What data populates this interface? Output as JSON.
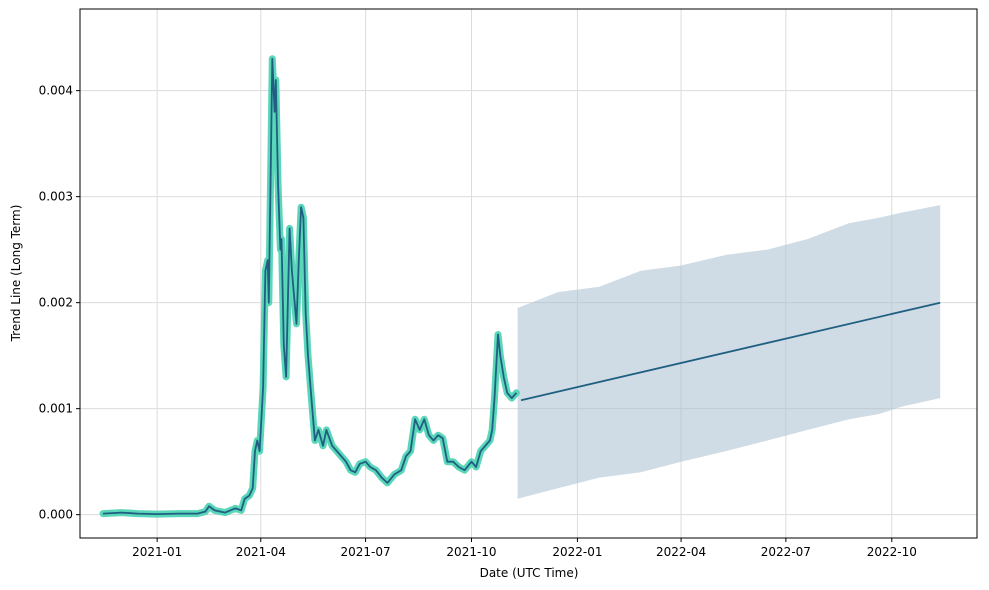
{
  "chart_data": {
    "type": "line",
    "title": "",
    "xlabel": "Date (UTC Time)",
    "ylabel": "Trend Line (Long Term)",
    "x_type": "date",
    "xlim": [
      "2020-10-26",
      "2022-12-14"
    ],
    "ylim": [
      -0.00022,
      0.00477
    ],
    "grid": true,
    "legend": "none",
    "x_ticks": [
      {
        "date": "2021-01-01",
        "label": "2021-01"
      },
      {
        "date": "2021-04-01",
        "label": "2021-04"
      },
      {
        "date": "2021-07-01",
        "label": "2021-07"
      },
      {
        "date": "2021-10-01",
        "label": "2021-10"
      },
      {
        "date": "2022-01-01",
        "label": "2022-01"
      },
      {
        "date": "2022-04-01",
        "label": "2022-04"
      },
      {
        "date": "2022-07-01",
        "label": "2022-07"
      },
      {
        "date": "2022-10-01",
        "label": "2022-10"
      }
    ],
    "y_ticks": [
      {
        "value": 0.0,
        "label": "0.000"
      },
      {
        "value": 0.001,
        "label": "0.001"
      },
      {
        "value": 0.002,
        "label": "0.002"
      },
      {
        "value": 0.003,
        "label": "0.003"
      },
      {
        "value": 0.004,
        "label": "0.004"
      }
    ],
    "colors": {
      "actual": "#48d1b0",
      "trend": "#1f5f82",
      "band": "#a9bfcf",
      "grid": "#dcdcdc"
    },
    "series": [
      {
        "role": "actual",
        "points": [
          [
            "2020-11-15",
            1e-05
          ],
          [
            "2020-12-01",
            2e-05
          ],
          [
            "2020-12-15",
            1e-05
          ],
          [
            "2021-01-01",
            5e-06
          ],
          [
            "2021-01-20",
            1e-05
          ],
          [
            "2021-02-05",
            1e-05
          ],
          [
            "2021-02-12",
            3e-05
          ],
          [
            "2021-02-15",
            8e-05
          ],
          [
            "2021-02-20",
            4e-05
          ],
          [
            "2021-03-01",
            2e-05
          ],
          [
            "2021-03-10",
            6e-05
          ],
          [
            "2021-03-15",
            4e-05
          ],
          [
            "2021-03-18",
            0.00015
          ],
          [
            "2021-03-22",
            0.00018
          ],
          [
            "2021-03-25",
            0.00025
          ],
          [
            "2021-03-27",
            0.0006
          ],
          [
            "2021-03-29",
            0.0007
          ],
          [
            "2021-03-31",
            0.0006
          ],
          [
            "2021-04-03",
            0.0012
          ],
          [
            "2021-04-05",
            0.0023
          ],
          [
            "2021-04-07",
            0.0024
          ],
          [
            "2021-04-08",
            0.002
          ],
          [
            "2021-04-10",
            0.0035
          ],
          [
            "2021-04-11",
            0.0043
          ],
          [
            "2021-04-13",
            0.0038
          ],
          [
            "2021-04-14",
            0.0041
          ],
          [
            "2021-04-16",
            0.0031
          ],
          [
            "2021-04-18",
            0.0025
          ],
          [
            "2021-04-19",
            0.0026
          ],
          [
            "2021-04-21",
            0.0016
          ],
          [
            "2021-04-23",
            0.0013
          ],
          [
            "2021-04-26",
            0.0027
          ],
          [
            "2021-04-28",
            0.0023
          ],
          [
            "2021-05-02",
            0.0018
          ],
          [
            "2021-05-04",
            0.0024
          ],
          [
            "2021-05-06",
            0.0029
          ],
          [
            "2021-05-08",
            0.0028
          ],
          [
            "2021-05-10",
            0.0019
          ],
          [
            "2021-05-12",
            0.0015
          ],
          [
            "2021-05-15",
            0.0011
          ],
          [
            "2021-05-18",
            0.0007
          ],
          [
            "2021-05-21",
            0.0008
          ],
          [
            "2021-05-25",
            0.00065
          ],
          [
            "2021-05-28",
            0.0008
          ],
          [
            "2021-06-02",
            0.00065
          ],
          [
            "2021-06-06",
            0.0006
          ],
          [
            "2021-06-10",
            0.00055
          ],
          [
            "2021-06-14",
            0.0005
          ],
          [
            "2021-06-18",
            0.00042
          ],
          [
            "2021-06-22",
            0.0004
          ],
          [
            "2021-06-26",
            0.00048
          ],
          [
            "2021-07-01",
            0.0005
          ],
          [
            "2021-07-05",
            0.00045
          ],
          [
            "2021-07-10",
            0.00042
          ],
          [
            "2021-07-15",
            0.00035
          ],
          [
            "2021-07-20",
            0.0003
          ],
          [
            "2021-07-26",
            0.00038
          ],
          [
            "2021-08-01",
            0.00042
          ],
          [
            "2021-08-05",
            0.00055
          ],
          [
            "2021-08-09",
            0.0006
          ],
          [
            "2021-08-13",
            0.0009
          ],
          [
            "2021-08-17",
            0.0008
          ],
          [
            "2021-08-21",
            0.0009
          ],
          [
            "2021-08-25",
            0.00075
          ],
          [
            "2021-08-29",
            0.0007
          ],
          [
            "2021-09-02",
            0.00075
          ],
          [
            "2021-09-06",
            0.00072
          ],
          [
            "2021-09-10",
            0.0005
          ],
          [
            "2021-09-15",
            0.0005
          ],
          [
            "2021-09-20",
            0.00045
          ],
          [
            "2021-09-25",
            0.00042
          ],
          [
            "2021-10-01",
            0.0005
          ],
          [
            "2021-10-05",
            0.00045
          ],
          [
            "2021-10-09",
            0.0006
          ],
          [
            "2021-10-13",
            0.00065
          ],
          [
            "2021-10-17",
            0.0007
          ],
          [
            "2021-10-19",
            0.0008
          ],
          [
            "2021-10-21",
            0.0011
          ],
          [
            "2021-10-24",
            0.0017
          ],
          [
            "2021-10-26",
            0.0015
          ],
          [
            "2021-10-29",
            0.0013
          ],
          [
            "2021-11-01",
            0.00115
          ],
          [
            "2021-11-05",
            0.0011
          ],
          [
            "2021-11-09",
            0.00115
          ]
        ]
      },
      {
        "role": "forecast-trend",
        "points": [
          [
            "2021-11-13",
            0.00108
          ],
          [
            "2022-11-12",
            0.002
          ]
        ]
      },
      {
        "role": "uncertainty-band",
        "upper": [
          [
            "2021-11-10",
            0.00195
          ],
          [
            "2021-12-15",
            0.0021
          ],
          [
            "2022-01-20",
            0.00215
          ],
          [
            "2022-02-25",
            0.0023
          ],
          [
            "2022-04-01",
            0.00235
          ],
          [
            "2022-05-10",
            0.00245
          ],
          [
            "2022-06-15",
            0.0025
          ],
          [
            "2022-07-20",
            0.0026
          ],
          [
            "2022-08-25",
            0.00275
          ],
          [
            "2022-09-20",
            0.0028
          ],
          [
            "2022-10-10",
            0.00285
          ],
          [
            "2022-11-12",
            0.00292
          ]
        ],
        "lower": [
          [
            "2021-11-10",
            0.00015
          ],
          [
            "2021-12-15",
            0.00025
          ],
          [
            "2022-01-20",
            0.00035
          ],
          [
            "2022-02-25",
            0.0004
          ],
          [
            "2022-04-01",
            0.0005
          ],
          [
            "2022-05-10",
            0.0006
          ],
          [
            "2022-06-15",
            0.0007
          ],
          [
            "2022-07-20",
            0.0008
          ],
          [
            "2022-08-25",
            0.0009
          ],
          [
            "2022-09-20",
            0.00095
          ],
          [
            "2022-10-10",
            0.00102
          ],
          [
            "2022-11-12",
            0.0011
          ]
        ]
      }
    ]
  }
}
